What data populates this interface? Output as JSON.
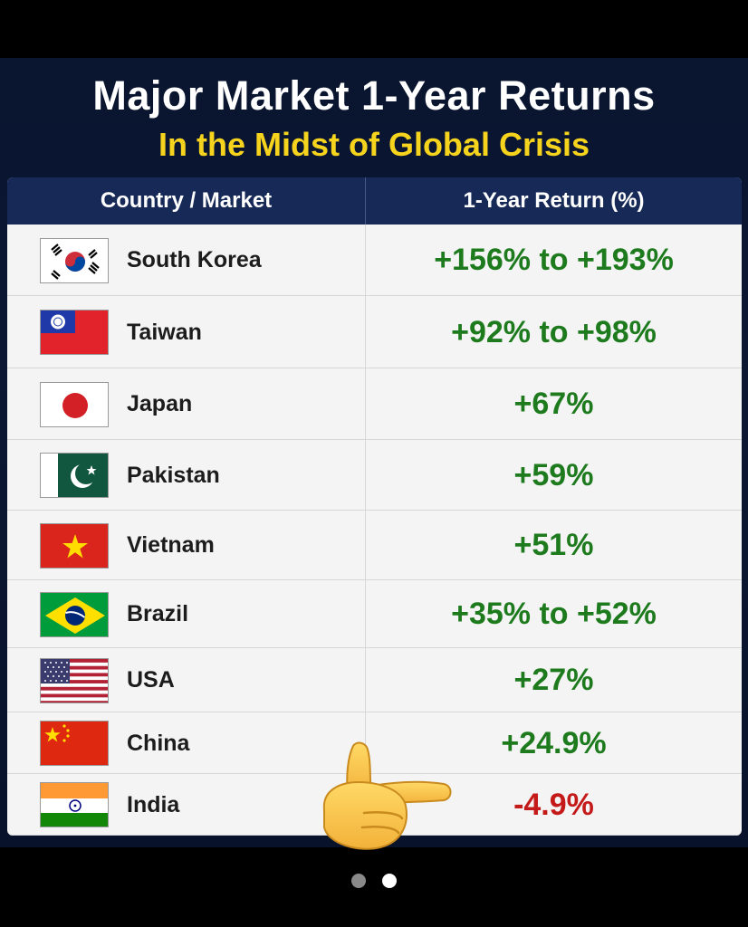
{
  "title": "Major Market 1-Year Returns",
  "subtitle": "In the Midst of Global Crisis",
  "table_header": {
    "country": "Country / Market",
    "return": "1-Year Return (%)"
  },
  "rows": [
    {
      "country": "South Korea",
      "return": "+156% to +193%",
      "flag": "south-korea-flag"
    },
    {
      "country": "Taiwan",
      "return": "+92% to +98%",
      "flag": "taiwan-flag"
    },
    {
      "country": "Japan",
      "return": "+67%",
      "flag": "japan-flag"
    },
    {
      "country": "Pakistan",
      "return": "+59%",
      "flag": "pakistan-flag"
    },
    {
      "country": "Vietnam",
      "return": "+51%",
      "flag": "vietnam-flag"
    },
    {
      "country": "Brazil",
      "return": "+35% to +52%",
      "flag": "brazil-flag"
    },
    {
      "country": "USA",
      "return": "+27%",
      "flag": "usa-flag"
    },
    {
      "country": "China",
      "return": "+24.9%",
      "flag": "china-flag"
    },
    {
      "country": "India",
      "return": "-4.9%",
      "flag": "india-flag"
    }
  ],
  "colors": {
    "background": "#0a1530",
    "title": "#ffffff",
    "subtitle": "#f6d31d",
    "header": "#172957",
    "positive": "#1d7a1d",
    "negative": "#c41a1a"
  },
  "icons": {
    "pointer": "pointing-hand-icon"
  },
  "carousel": {
    "total_pages": 2,
    "active_page": 2
  },
  "chart_data": {
    "type": "table",
    "title": "Major Market 1-Year Returns",
    "subtitle": "In the Midst of Global Crisis",
    "columns": [
      "Country / Market",
      "1-Year Return (%)"
    ],
    "categories": [
      "South Korea",
      "Taiwan",
      "Japan",
      "Pakistan",
      "Vietnam",
      "Brazil",
      "USA",
      "China",
      "India"
    ],
    "values": [
      "+156% to +193%",
      "+92% to +98%",
      "+67%",
      "+59%",
      "+51%",
      "+35% to +52%",
      "+27%",
      "+24.9%",
      "-4.9%"
    ]
  }
}
